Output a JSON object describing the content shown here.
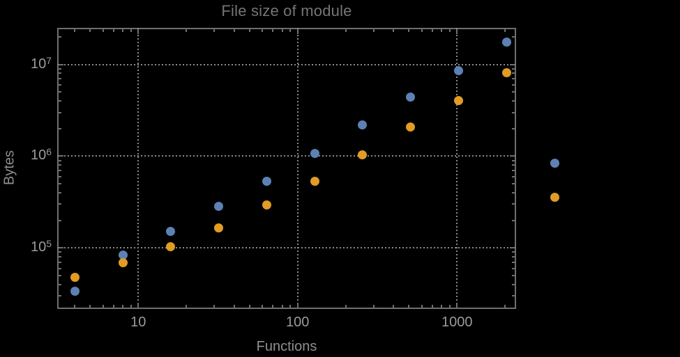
{
  "title": "File size of module",
  "colors": {
    "background": "#000000",
    "frame": "#6f6f6f",
    "grid": "#8a8a8a",
    "title_text": "#757575",
    "axis_label_text": "#8f8f8f",
    "tick_label_text": "#9b9b9b",
    "series_blue": "#5e81b5",
    "series_orange": "#e19c24"
  },
  "chart_data": {
    "type": "scatter",
    "title": "File size of module",
    "xlabel": "Functions",
    "ylabel": "Bytes",
    "xscale": "log",
    "yscale": "log",
    "xlim": [
      3.1,
      2350
    ],
    "ylim": [
      21700,
      25000000
    ],
    "grid": "dotted",
    "legend": "none",
    "frame": true,
    "x": [
      4,
      8,
      16,
      32,
      64,
      128,
      256,
      512,
      1024,
      2048,
      4096
    ],
    "series": [
      {
        "name": "blue",
        "color": "#5e81b5",
        "values": [
          34000,
          84000,
          153000,
          285000,
          535000,
          1070000,
          2180000,
          4380000,
          8550000,
          17400000,
          840000
        ]
      },
      {
        "name": "orange",
        "color": "#e19c24",
        "values": [
          48000,
          69000,
          103000,
          167000,
          293000,
          530000,
          1030000,
          2090000,
          4060000,
          8100000,
          360000
        ]
      }
    ],
    "xticks": [
      {
        "value": 10,
        "label": "10"
      },
      {
        "value": 100,
        "label": "100"
      },
      {
        "value": 1000,
        "label": "1000"
      }
    ],
    "yticks": [
      {
        "value": 100000,
        "mantissa": "10",
        "exponent": "5"
      },
      {
        "value": 1000000,
        "mantissa": "10",
        "exponent": "6"
      },
      {
        "value": 10000000,
        "mantissa": "10",
        "exponent": "7"
      }
    ]
  }
}
